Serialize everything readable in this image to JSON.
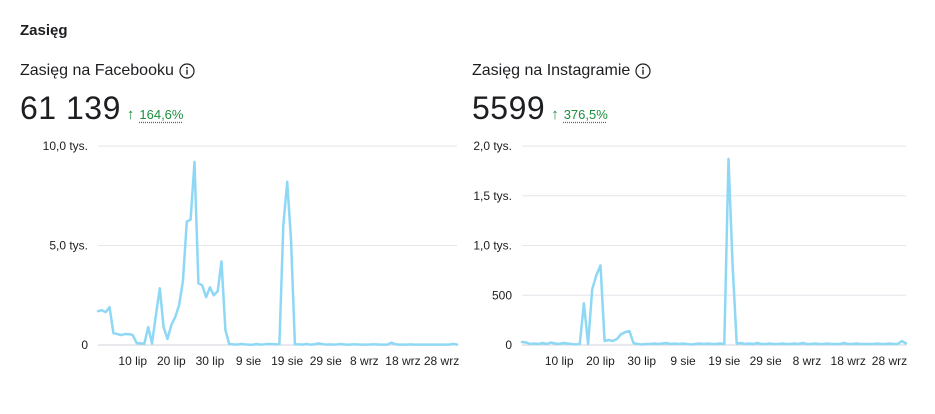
{
  "section_title": "Zasięg",
  "chart_data": [
    {
      "type": "line",
      "title": "Zasięg na Facebooku",
      "total": "61 139",
      "change": "164,6%",
      "change_direction": "up",
      "color": "#8fd8f5",
      "ylim": [
        0,
        10000
      ],
      "yticks": [
        0,
        5000,
        10000
      ],
      "ytick_labels": [
        "0",
        "5,0 tys.",
        "10,0 tys."
      ],
      "xtick_labels": [
        "10 lip",
        "20 lip",
        "30 lip",
        "9 sie",
        "19 sie",
        "29 sie",
        "8 wrz",
        "18 wrz",
        "28 wrz"
      ],
      "xtick_days": [
        9,
        19,
        29,
        39,
        49,
        59,
        69,
        79,
        89
      ],
      "x_days": [
        0,
        1,
        2,
        3,
        4,
        5,
        6,
        7,
        8,
        9,
        10,
        11,
        12,
        13,
        14,
        15,
        16,
        17,
        18,
        19,
        20,
        21,
        22,
        23,
        24,
        25,
        26,
        27,
        28,
        29,
        30,
        31,
        32,
        33,
        34,
        35,
        36,
        37,
        38,
        39,
        40,
        41,
        42,
        43,
        44,
        45,
        46,
        47,
        48,
        49,
        50,
        51,
        52,
        53,
        54,
        55,
        56,
        57,
        58,
        59,
        60,
        61,
        62,
        63,
        64,
        65,
        66,
        67,
        68,
        69,
        70,
        71,
        72,
        73,
        74,
        75,
        76,
        77,
        78,
        79,
        80,
        81,
        82,
        83,
        84,
        85,
        86,
        87,
        88,
        89,
        90,
        91,
        92,
        93
      ],
      "values": [
        1700,
        1750,
        1650,
        1900,
        600,
        550,
        500,
        550,
        550,
        500,
        100,
        80,
        60,
        900,
        80,
        1500,
        2850,
        900,
        300,
        1000,
        1400,
        2000,
        3200,
        6200,
        6300,
        9200,
        3100,
        3000,
        2400,
        2900,
        2500,
        2700,
        4200,
        750,
        50,
        30,
        20,
        50,
        30,
        20,
        10,
        50,
        20,
        30,
        50,
        50,
        30,
        40,
        6000,
        8200,
        5300,
        40,
        30,
        20,
        50,
        20,
        30,
        80,
        50,
        20,
        30,
        20,
        30,
        50,
        20,
        20,
        30,
        30,
        20,
        20,
        20,
        30,
        30,
        20,
        20,
        20,
        120,
        40,
        20,
        20,
        20,
        30,
        20,
        20,
        20,
        20,
        20,
        20,
        20,
        20,
        20,
        20,
        60,
        20
      ]
    },
    {
      "type": "line",
      "title": "Zasięg na Instagramie",
      "total": "5599",
      "change": "376,5%",
      "change_direction": "up",
      "color": "#8fd8f5",
      "ylim": [
        0,
        2000
      ],
      "yticks": [
        0,
        500,
        1000,
        1500,
        2000
      ],
      "ytick_labels": [
        "0",
        "500",
        "1,0 tys.",
        "1,5 tys.",
        "2,0 tys."
      ],
      "xtick_labels": [
        "10 lip",
        "20 lip",
        "30 lip",
        "9 sie",
        "19 sie",
        "29 sie",
        "8 wrz",
        "18 wrz",
        "28 wrz"
      ],
      "xtick_days": [
        9,
        19,
        29,
        39,
        49,
        59,
        69,
        79,
        89
      ],
      "x_days": [
        0,
        1,
        2,
        3,
        4,
        5,
        6,
        7,
        8,
        9,
        10,
        11,
        12,
        13,
        14,
        15,
        16,
        17,
        18,
        19,
        20,
        21,
        22,
        23,
        24,
        25,
        26,
        27,
        28,
        29,
        30,
        31,
        32,
        33,
        34,
        35,
        36,
        37,
        38,
        39,
        40,
        41,
        42,
        43,
        44,
        45,
        46,
        47,
        48,
        49,
        50,
        51,
        52,
        53,
        54,
        55,
        56,
        57,
        58,
        59,
        60,
        61,
        62,
        63,
        64,
        65,
        66,
        67,
        68,
        69,
        70,
        71,
        72,
        73,
        74,
        75,
        76,
        77,
        78,
        79,
        80,
        81,
        82,
        83,
        84,
        85,
        86,
        87,
        88,
        89,
        90,
        91,
        92,
        93
      ],
      "values": [
        30,
        25,
        10,
        15,
        10,
        20,
        10,
        25,
        15,
        10,
        20,
        15,
        10,
        5,
        10,
        420,
        10,
        560,
        700,
        800,
        40,
        50,
        40,
        60,
        110,
        130,
        140,
        20,
        10,
        5,
        10,
        10,
        15,
        10,
        15,
        20,
        10,
        15,
        10,
        15,
        10,
        5,
        10,
        15,
        10,
        15,
        10,
        10,
        15,
        10,
        1870,
        800,
        15,
        20,
        10,
        15,
        10,
        20,
        10,
        10,
        15,
        10,
        10,
        15,
        10,
        10,
        15,
        10,
        20,
        10,
        10,
        15,
        10,
        10,
        15,
        10,
        10,
        10,
        20,
        10,
        10,
        15,
        10,
        10,
        10,
        10,
        15,
        10,
        10,
        15,
        10,
        10,
        40,
        15
      ]
    }
  ]
}
